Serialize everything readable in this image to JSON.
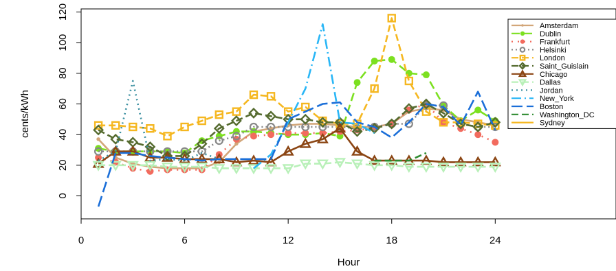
{
  "chart_data": {
    "type": "line",
    "title": "",
    "xlabel": "Hour",
    "ylabel": "cents/kWh",
    "xlim": [
      0,
      31
    ],
    "ylim": [
      -15,
      122
    ],
    "x_ticks": [
      0,
      6,
      12,
      18,
      24
    ],
    "y_ticks": [
      0,
      20,
      40,
      60,
      80,
      100,
      120
    ],
    "grid": false,
    "legend_position": "top-right",
    "series": [
      {
        "name": "Amsterdam",
        "color": "#d2a679",
        "dash": "",
        "marker": "dot",
        "x": [
          1,
          2,
          3,
          4,
          5,
          6,
          7,
          8,
          9,
          10,
          11,
          12,
          13,
          14,
          15,
          16,
          17,
          18,
          19,
          20,
          21,
          22,
          23,
          24
        ],
        "y": [
          37,
          25,
          21,
          19,
          18,
          18,
          18,
          22,
          34,
          42,
          44,
          46,
          47,
          47,
          46,
          45,
          45,
          47,
          55,
          57,
          56,
          50,
          48,
          46
        ]
      },
      {
        "name": "Dublin",
        "color": "#7ce020",
        "dash": "12,6",
        "marker": "filled-circle",
        "x": [
          1,
          2,
          3,
          4,
          5,
          6,
          7,
          8,
          9,
          10,
          11,
          12,
          13,
          14,
          15,
          16,
          17,
          18,
          19,
          20,
          21,
          22,
          23,
          24
        ],
        "y": [
          31,
          29,
          29,
          29,
          29,
          28,
          36,
          39,
          42,
          42,
          41,
          40,
          40,
          41,
          39,
          74,
          88,
          89,
          80,
          79,
          59,
          49,
          56,
          49
        ]
      },
      {
        "name": "Frankfurt",
        "color": "#f26b5e",
        "dash": "2,7",
        "marker": "filled-circle",
        "x": [
          1,
          2,
          3,
          4,
          5,
          6,
          7,
          8,
          9,
          10,
          11,
          12,
          13,
          14,
          15,
          16,
          17,
          18,
          19,
          20,
          21,
          22,
          23,
          24
        ],
        "y": [
          25,
          22,
          18,
          16,
          17,
          17,
          17,
          27,
          37,
          39,
          40,
          41,
          41,
          41,
          42,
          43,
          44,
          47,
          56,
          60,
          48,
          44,
          40,
          35
        ]
      },
      {
        "name": "Helsinki",
        "color": "#888888",
        "dash": "2,4",
        "marker": "circle",
        "x": [
          1,
          2,
          3,
          4,
          5,
          6,
          7,
          8,
          9,
          10,
          11,
          12,
          13,
          14,
          15,
          16,
          17,
          18,
          19,
          20,
          21,
          22,
          23,
          24
        ],
        "y": [
          29,
          29,
          29,
          29,
          29,
          29,
          29,
          36,
          39,
          45,
          45,
          45,
          45,
          45,
          45,
          44,
          45,
          47,
          47,
          59,
          59,
          47,
          45,
          45
        ]
      },
      {
        "name": "London",
        "color": "#f5b720",
        "dash": "10,5",
        "marker": "square",
        "x": [
          1,
          2,
          3,
          4,
          5,
          6,
          7,
          8,
          9,
          10,
          11,
          12,
          13,
          14,
          15,
          16,
          17,
          18,
          19,
          20,
          21,
          22,
          23,
          24
        ],
        "y": [
          46,
          46,
          45,
          44,
          39,
          45,
          49,
          53,
          55,
          66,
          65,
          55,
          58,
          49,
          47,
          47,
          70,
          116,
          75,
          55,
          48,
          48,
          47,
          46
        ]
      },
      {
        "name": "Saint_Guislain",
        "color": "#556b2f",
        "dash": "10,5",
        "marker": "diamond",
        "x": [
          1,
          2,
          3,
          4,
          5,
          6,
          7,
          8,
          9,
          10,
          11,
          12,
          13,
          14,
          15,
          16,
          17,
          18,
          19,
          20,
          21,
          22,
          23,
          24
        ],
        "y": [
          43,
          37,
          35,
          32,
          26,
          26,
          34,
          44,
          49,
          54,
          52,
          50,
          50,
          48,
          48,
          42,
          44,
          47,
          57,
          60,
          54,
          47,
          45,
          48
        ]
      },
      {
        "name": "Chicago",
        "color": "#8b4513",
        "dash": "",
        "marker": "triangle",
        "x": [
          1,
          2,
          3,
          4,
          5,
          6,
          7,
          8,
          9,
          10,
          11,
          12,
          13,
          14,
          15,
          16,
          17,
          18,
          19,
          20,
          21,
          22,
          23,
          24
        ],
        "y": [
          21,
          29,
          29,
          25,
          25,
          24,
          24,
          24,
          22,
          23,
          22,
          29,
          34,
          37,
          44,
          29,
          23,
          23,
          23,
          23,
          22,
          22,
          22,
          22
        ]
      },
      {
        "name": "Dallas",
        "color": "#b8f0b8",
        "dash": "10,5",
        "marker": "triangle-down",
        "x": [
          1,
          2,
          3,
          4,
          5,
          6,
          7,
          8,
          9,
          10,
          11,
          12,
          13,
          14,
          15,
          16,
          17,
          18,
          19,
          20,
          21,
          22,
          23,
          24
        ],
        "y": [
          20,
          20,
          20,
          20,
          19,
          19,
          19,
          18,
          18,
          18,
          18,
          18,
          21,
          21,
          22,
          21,
          20,
          20,
          19,
          19,
          19,
          19,
          19,
          19
        ]
      },
      {
        "name": "Jordan",
        "color": "#3a8fa0",
        "dash": "2,5",
        "marker": "none",
        "x": [
          1,
          2,
          3,
          4,
          5,
          6,
          7,
          8
        ],
        "y": [
          23,
          29,
          75,
          23,
          24,
          23,
          28,
          24
        ]
      },
      {
        "name": "New_York",
        "color": "#29b6f6",
        "dash": "14,5,2,5",
        "marker": "none",
        "x": [
          10,
          11,
          12,
          13,
          14,
          15,
          16,
          17
        ],
        "y": [
          18,
          27,
          48,
          70,
          112,
          48,
          47,
          41
        ]
      },
      {
        "name": "Boston",
        "color": "#1a6ed8",
        "dash": "16,6",
        "marker": "none",
        "x": [
          1,
          2,
          3,
          4,
          5,
          6,
          7,
          8,
          9,
          10,
          11,
          12,
          13,
          14,
          15,
          16,
          17,
          18,
          19,
          20,
          21,
          22,
          23,
          24
        ],
        "y": [
          -7,
          28,
          28,
          26,
          25,
          24,
          23,
          24,
          24,
          24,
          24,
          50,
          55,
          60,
          61,
          48,
          45,
          38,
          48,
          60,
          58,
          46,
          68,
          43
        ]
      },
      {
        "name": "Washington_DC",
        "color": "#2e8b30",
        "dash": "10,5",
        "marker": "none",
        "x": [
          17,
          18,
          19,
          20
        ],
        "y": [
          23,
          23,
          23,
          28
        ]
      },
      {
        "name": "Sydney",
        "color": "#f5b720",
        "dash": "",
        "marker": "none",
        "x": [],
        "y": []
      }
    ]
  }
}
